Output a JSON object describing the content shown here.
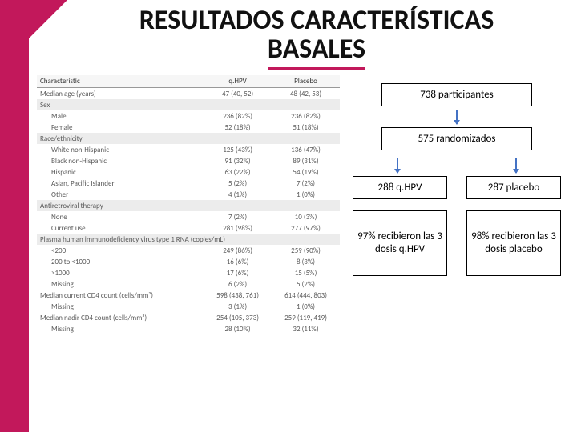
{
  "accent_color": "#c2185b",
  "title_line1": "RESULTADOS CARACTERÍSTICAS",
  "title_line2": "BASALES",
  "flow": {
    "b1": "738 participantes",
    "b2": "575 randomizados",
    "b3": "288 q.HPV",
    "b4": "287 placebo",
    "b5": "97% recibieron las 3 dosis q.HPV",
    "b6": "98% recibieron las 3 dosis placebo"
  },
  "arrow_color": "#4472c4",
  "table": {
    "col0": "Characteristic",
    "col1": "q.HPV",
    "col2": "Placebo",
    "rows": [
      {
        "t": "plain",
        "c0": "Median age (years)",
        "c1": "47 (40, 52)",
        "c2": "48 (42, 53)"
      },
      {
        "t": "sec",
        "c0": "Sex"
      },
      {
        "t": "ind",
        "c0": "Male",
        "c1": "236 (82%)",
        "c2": "236 (82%)"
      },
      {
        "t": "ind",
        "c0": "Female",
        "c1": "52 (18%)",
        "c2": "51 (18%)"
      },
      {
        "t": "sec",
        "c0": "Race/ethnicity"
      },
      {
        "t": "ind",
        "c0": "White non-Hispanic",
        "c1": "125 (43%)",
        "c2": "136 (47%)"
      },
      {
        "t": "ind",
        "c0": "Black non-Hispanic",
        "c1": "91 (32%)",
        "c2": "89 (31%)"
      },
      {
        "t": "ind",
        "c0": "Hispanic",
        "c1": "63 (22%)",
        "c2": "54 (19%)"
      },
      {
        "t": "ind",
        "c0": "Asian, Pacific Islander",
        "c1": "5 (2%)",
        "c2": "7 (2%)"
      },
      {
        "t": "ind",
        "c0": "Other",
        "c1": "4 (1%)",
        "c2": "1 (0%)"
      },
      {
        "t": "sec",
        "c0": "Antiretroviral therapy"
      },
      {
        "t": "ind",
        "c0": "None",
        "c1": "7 (2%)",
        "c2": "10 (3%)"
      },
      {
        "t": "ind",
        "c0": "Current use",
        "c1": "281 (98%)",
        "c2": "277 (97%)"
      },
      {
        "t": "sec",
        "c0": "Plasma human immunodeficiency virus type 1 RNA (copies/mL)"
      },
      {
        "t": "ind",
        "c0": "<200",
        "c1": "249 (86%)",
        "c2": "259 (90%)"
      },
      {
        "t": "ind",
        "c0": "200 to <1000",
        "c1": "16 (6%)",
        "c2": "8 (3%)"
      },
      {
        "t": "ind",
        "c0": ">1000",
        "c1": "17 (6%)",
        "c2": "15 (5%)"
      },
      {
        "t": "ind",
        "c0": "Missing",
        "c1": "6 (2%)",
        "c2": "5 (2%)"
      },
      {
        "t": "plain",
        "c0": "Median current CD4 count (cells/mm³)",
        "c1": "598 (438, 761)",
        "c2": "614 (444, 803)"
      },
      {
        "t": "ind",
        "c0": "Missing",
        "c1": "3 (1%)",
        "c2": "1 (0%)"
      },
      {
        "t": "plain",
        "c0": "Median nadir CD4 count (cells/mm³)",
        "c1": "254 (105, 373)",
        "c2": "259 (119, 419)"
      },
      {
        "t": "ind",
        "c0": "Missing",
        "c1": "28 (10%)",
        "c2": "32 (11%)"
      }
    ]
  }
}
